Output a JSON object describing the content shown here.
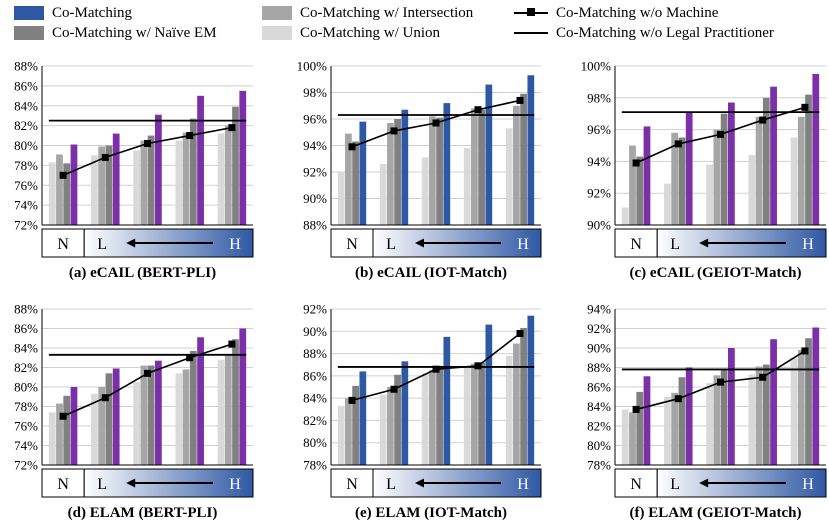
{
  "legend": {
    "items": [
      {
        "label": "Co-Matching",
        "color": "#2f58a4",
        "kind": "bar"
      },
      {
        "label": "Co-Matching w/ Naïve EM",
        "color": "#808080",
        "kind": "bar"
      },
      {
        "label": "Co-Matching w/ Intersection",
        "color": "#a6a6a6",
        "kind": "bar"
      },
      {
        "label": "Co-Matching w/ Union",
        "color": "#d9d9d9",
        "kind": "bar"
      },
      {
        "label": "Co-Matching w/o Machine",
        "color": "#000000",
        "kind": "line-marker"
      },
      {
        "label": "Co-Matching w/o Legal Practitioner",
        "color": "#000000",
        "kind": "line"
      }
    ]
  },
  "axis_strip": {
    "n_label": "N",
    "l_label": "L",
    "h_label": "H"
  },
  "colors": {
    "co_matching_blue": "#2f58a4",
    "co_matching_purple": "#7b2fa8",
    "naive_em": "#808080",
    "intersection": "#a6a6a6",
    "union": "#d9d9d9",
    "gradient_start": "#ffffff",
    "gradient_end": "#2f58a4"
  },
  "chart_data": [
    {
      "type": "bar",
      "title": "(a) eCAIL (BERT-PLI)",
      "co_matching_color": "purple",
      "y_ticks": [
        "72%",
        "74%",
        "76%",
        "78%",
        "80%",
        "82%",
        "84%",
        "86%",
        "88%"
      ],
      "ylim": [
        72,
        88
      ],
      "groups": 5,
      "series": [
        {
          "name": "Co-Matching w/ Union",
          "values": [
            78.3,
            79.0,
            79.5,
            80.5,
            81.2
          ]
        },
        {
          "name": "Co-Matching w/ Intersection",
          "values": [
            79.1,
            79.9,
            80.5,
            81.3,
            82.0
          ]
        },
        {
          "name": "Co-Matching w/ Naïve EM",
          "values": [
            78.2,
            80.0,
            81.0,
            82.7,
            83.9
          ]
        },
        {
          "name": "Co-Matching",
          "values": [
            80.1,
            81.2,
            83.1,
            85.0,
            85.5
          ]
        }
      ],
      "wo_machine": [
        77.0,
        78.8,
        80.2,
        81.0,
        81.8
      ],
      "wo_legal_practitioner": 82.5
    },
    {
      "type": "bar",
      "title": "(b) eCAIL (IOT-Match)",
      "co_matching_color": "blue",
      "y_ticks": [
        "88%",
        "90%",
        "92%",
        "94%",
        "96%",
        "98%",
        "100%"
      ],
      "ylim": [
        88,
        100
      ],
      "groups": 5,
      "series": [
        {
          "name": "Co-Matching w/ Union",
          "values": [
            92.0,
            92.6,
            93.1,
            93.8,
            95.3
          ]
        },
        {
          "name": "Co-Matching w/ Intersection",
          "values": [
            94.9,
            95.7,
            96.2,
            96.8,
            97.0
          ]
        },
        {
          "name": "Co-Matching w/ Naïve EM",
          "values": [
            94.3,
            96.0,
            96.1,
            96.7,
            97.9
          ]
        },
        {
          "name": "Co-Matching",
          "values": [
            95.8,
            96.7,
            97.2,
            98.6,
            99.3
          ]
        }
      ],
      "wo_machine": [
        93.9,
        95.1,
        95.7,
        96.7,
        97.4
      ],
      "wo_legal_practitioner": 96.3
    },
    {
      "type": "bar",
      "title": "(c) eCAIL (GEIOT-Match)",
      "co_matching_color": "purple",
      "y_ticks": [
        "90%",
        "92%",
        "94%",
        "96%",
        "98%",
        "100%"
      ],
      "ylim": [
        90,
        100
      ],
      "groups": 5,
      "series": [
        {
          "name": "Co-Matching w/ Union",
          "values": [
            91.1,
            92.6,
            93.8,
            94.4,
            95.5
          ]
        },
        {
          "name": "Co-Matching w/ Intersection",
          "values": [
            95.0,
            95.8,
            96.0,
            96.8,
            96.8
          ]
        },
        {
          "name": "Co-Matching w/ Naïve EM",
          "values": [
            94.3,
            95.5,
            97.0,
            98.0,
            98.2
          ]
        },
        {
          "name": "Co-Matching",
          "values": [
            96.2,
            97.1,
            97.7,
            98.7,
            99.5
          ]
        }
      ],
      "wo_machine": [
        93.9,
        95.1,
        95.7,
        96.6,
        97.4
      ],
      "wo_legal_practitioner": 97.1
    },
    {
      "type": "bar",
      "title": "(d) ELAM (BERT-PLI)",
      "co_matching_color": "purple",
      "y_ticks": [
        "72%",
        "74%",
        "76%",
        "78%",
        "80%",
        "82%",
        "84%",
        "86%",
        "88%"
      ],
      "ylim": [
        72,
        88
      ],
      "groups": 5,
      "series": [
        {
          "name": "Co-Matching w/ Union",
          "values": [
            77.4,
            79.3,
            80.5,
            81.4,
            82.8
          ]
        },
        {
          "name": "Co-Matching w/ Intersection",
          "values": [
            78.3,
            80.0,
            82.2,
            81.8,
            83.3
          ]
        },
        {
          "name": "Co-Matching w/ Naïve EM",
          "values": [
            79.1,
            81.4,
            82.2,
            83.7,
            84.9
          ]
        },
        {
          "name": "Co-Matching",
          "values": [
            80.0,
            81.9,
            82.7,
            85.1,
            86.0
          ]
        }
      ],
      "wo_machine": [
        77.0,
        78.9,
        81.4,
        83.0,
        84.4
      ],
      "wo_legal_practitioner": 83.3
    },
    {
      "type": "bar",
      "title": "(e) ELAM (IOT-Match)",
      "co_matching_color": "blue",
      "y_ticks": [
        "78%",
        "80%",
        "82%",
        "84%",
        "86%",
        "88%",
        "90%",
        "92%"
      ],
      "ylim": [
        78,
        92
      ],
      "groups": 5,
      "series": [
        {
          "name": "Co-Matching w/ Union",
          "values": [
            83.3,
            84.3,
            86.2,
            86.8,
            87.8
          ]
        },
        {
          "name": "Co-Matching w/ Intersection",
          "values": [
            84.0,
            85.0,
            86.5,
            87.1,
            88.9
          ]
        },
        {
          "name": "Co-Matching w/ Naïve EM",
          "values": [
            85.1,
            86.1,
            86.9,
            87.2,
            90.3
          ]
        },
        {
          "name": "Co-Matching",
          "values": [
            86.4,
            87.3,
            89.5,
            90.6,
            91.4
          ]
        }
      ],
      "wo_machine": [
        83.8,
        84.8,
        86.6,
        86.9,
        89.8
      ],
      "wo_legal_practitioner": 86.8
    },
    {
      "type": "bar",
      "title": "(f) ELAM (GEIOT-Match)",
      "co_matching_color": "purple",
      "y_ticks": [
        "78%",
        "80%",
        "82%",
        "84%",
        "86%",
        "88%",
        "90%",
        "92%",
        "94%"
      ],
      "ylim": [
        78,
        94
      ],
      "groups": 5,
      "series": [
        {
          "name": "Co-Matching w/ Union",
          "values": [
            83.7,
            85.0,
            86.4,
            87.3,
            89.0
          ]
        },
        {
          "name": "Co-Matching w/ Intersection",
          "values": [
            83.4,
            85.4,
            87.2,
            88.1,
            89.8
          ]
        },
        {
          "name": "Co-Matching w/ Naïve EM",
          "values": [
            85.5,
            87.0,
            87.8,
            88.3,
            91.0
          ]
        },
        {
          "name": "Co-Matching",
          "values": [
            87.1,
            88.0,
            90.0,
            90.9,
            92.1
          ]
        }
      ],
      "wo_machine": [
        83.7,
        84.8,
        86.5,
        87.0,
        89.7
      ],
      "wo_legal_practitioner": 87.8
    }
  ]
}
